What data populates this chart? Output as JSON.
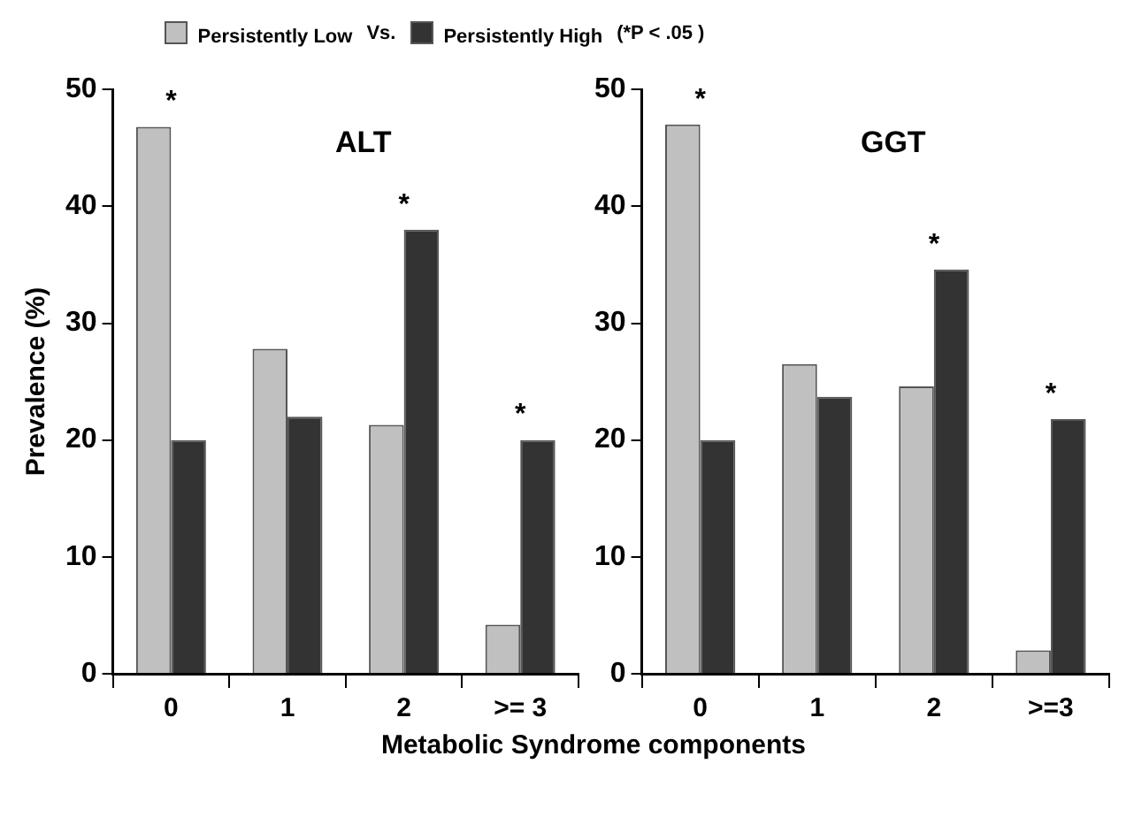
{
  "chart_data": [
    {
      "type": "bar",
      "title": "ALT",
      "ylabel": "Prevalence (%)",
      "xlabel": "Metabolic Syndrome components",
      "legend": "top",
      "grid": false,
      "categories": [
        "0",
        "1",
        "2",
        ">= 3"
      ],
      "series": [
        {
          "name": "Persistently Low",
          "color": "#c0c0c0",
          "values": [
            46.8,
            27.8,
            21.3,
            4.2
          ]
        },
        {
          "name": "Persistently High",
          "color": "#333333",
          "values": [
            20,
            22,
            38,
            20
          ]
        }
      ],
      "ylim": [
        0,
        50
      ],
      "yticks": [
        0,
        10,
        20,
        30,
        40,
        50
      ],
      "annotations": [
        "Vs.",
        "(*P < .05 )",
        {
          "text": "*",
          "x": "0",
          "y": 46.8
        },
        {
          "text": "*",
          "x": "2",
          "y": 38
        },
        {
          "text": "*",
          "x": ">= 3",
          "y": 20
        }
      ]
    },
    {
      "type": "bar",
      "title": "GGT",
      "grid": false,
      "categories": [
        "0",
        "1",
        "2",
        ">=3"
      ],
      "series": [
        {
          "color": "#c0c0c0",
          "values": [
            47,
            26.5,
            24.6,
            2
          ]
        },
        {
          "color": "#333333",
          "values": [
            20,
            23.7,
            34.6,
            21.8
          ]
        }
      ],
      "ylim": [
        0,
        50
      ],
      "yticks": [
        0,
        10,
        20,
        30,
        40,
        50
      ],
      "annotations": [
        {
          "text": "*",
          "x": "0",
          "y": 47
        },
        {
          "text": "*",
          "x": "2",
          "y": 34.6
        },
        {
          "text": "*",
          "x": ">=3",
          "y": 21.8
        }
      ]
    }
  ]
}
